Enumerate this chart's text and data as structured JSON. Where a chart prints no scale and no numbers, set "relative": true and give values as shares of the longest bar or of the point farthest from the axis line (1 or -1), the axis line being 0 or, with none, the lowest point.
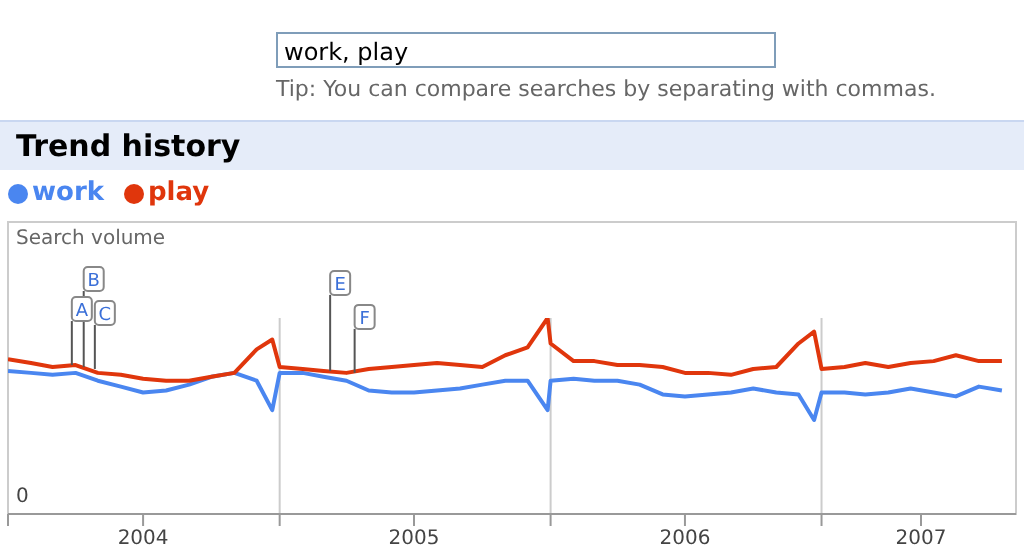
{
  "chart_data": {
    "type": "line",
    "title": "Trend history",
    "ylabel": "Search volume",
    "relative": true,
    "legend": "top left",
    "grid": "x",
    "marker": "none",
    "line_style": "solid",
    "annotations": [
      "work, play",
      "Tip: You can compare searches by separating with commas.",
      "0",
      {
        "text": "A",
        "x": "2004-03-27",
        "y": 0.76
      },
      {
        "text": "B",
        "x": "2004-04-12",
        "y": 0.75
      },
      {
        "text": "C",
        "x": "2004-04-27",
        "y": 0.74
      },
      {
        "text": "E",
        "x": "2005-03-10",
        "y": 0.73
      },
      {
        "text": "F",
        "x": "2005-04-12",
        "y": 0.72
      }
    ],
    "xlim": [
      "2004-01-01",
      "2007-09-20"
    ],
    "xticks": [
      {
        "value": "2004-01-01",
        "label": null
      },
      {
        "value": "2004-07-01",
        "label": "2004"
      },
      {
        "value": "2005-01-01",
        "label": null
      },
      {
        "value": "2005-07-01",
        "label": "2005"
      },
      {
        "value": "2006-01-01",
        "label": null
      },
      {
        "value": "2006-07-01",
        "label": "2006"
      },
      {
        "value": "2007-01-01",
        "label": null
      },
      {
        "value": "2007-05-15",
        "label": "2007"
      }
    ],
    "x": [
      "2004-01-01",
      "2004-02-01",
      "2004-03-01",
      "2004-04-01",
      "2004-05-01",
      "2004-06-01",
      "2004-07-01",
      "2004-08-01",
      "2004-09-01",
      "2004-10-01",
      "2004-11-01",
      "2004-12-01",
      "2004-12-22",
      "2005-01-01",
      "2005-02-01",
      "2005-03-01",
      "2005-04-01",
      "2005-05-01",
      "2005-06-01",
      "2005-07-01",
      "2005-08-01",
      "2005-09-01",
      "2005-10-01",
      "2005-11-01",
      "2005-12-01",
      "2005-12-28",
      "2006-01-01",
      "2006-02-01",
      "2006-03-01",
      "2006-04-01",
      "2006-05-01",
      "2006-06-01",
      "2006-07-01",
      "2006-08-01",
      "2006-09-01",
      "2006-10-01",
      "2006-11-01",
      "2006-12-01",
      "2006-12-22",
      "2007-01-01",
      "2007-02-01",
      "2007-03-01",
      "2007-04-01",
      "2007-05-01",
      "2007-06-01",
      "2007-07-01",
      "2007-08-01",
      "2007-09-01"
    ],
    "series": [
      {
        "name": "work",
        "color": "#4a86f0",
        "values": [
          0.73,
          0.72,
          0.71,
          0.72,
          0.68,
          0.65,
          0.62,
          0.63,
          0.66,
          0.7,
          0.72,
          0.68,
          0.53,
          0.72,
          0.72,
          0.7,
          0.68,
          0.63,
          0.62,
          0.62,
          0.63,
          0.64,
          0.66,
          0.68,
          0.68,
          0.53,
          0.68,
          0.69,
          0.68,
          0.68,
          0.66,
          0.61,
          0.6,
          0.61,
          0.62,
          0.64,
          0.62,
          0.61,
          0.48,
          0.62,
          0.62,
          0.61,
          0.62,
          0.64,
          0.62,
          0.6,
          0.65,
          0.63
        ]
      },
      {
        "name": "play",
        "color": "#e0360c",
        "values": [
          0.79,
          0.77,
          0.75,
          0.76,
          0.72,
          0.71,
          0.69,
          0.68,
          0.68,
          0.7,
          0.72,
          0.84,
          0.89,
          0.75,
          0.74,
          0.73,
          0.72,
          0.74,
          0.75,
          0.76,
          0.77,
          0.76,
          0.75,
          0.81,
          0.85,
          1.0,
          0.87,
          0.78,
          0.78,
          0.76,
          0.76,
          0.75,
          0.72,
          0.72,
          0.71,
          0.74,
          0.75,
          0.87,
          0.93,
          0.74,
          0.75,
          0.77,
          0.75,
          0.77,
          0.78,
          0.81,
          0.78,
          0.78
        ]
      }
    ]
  }
}
